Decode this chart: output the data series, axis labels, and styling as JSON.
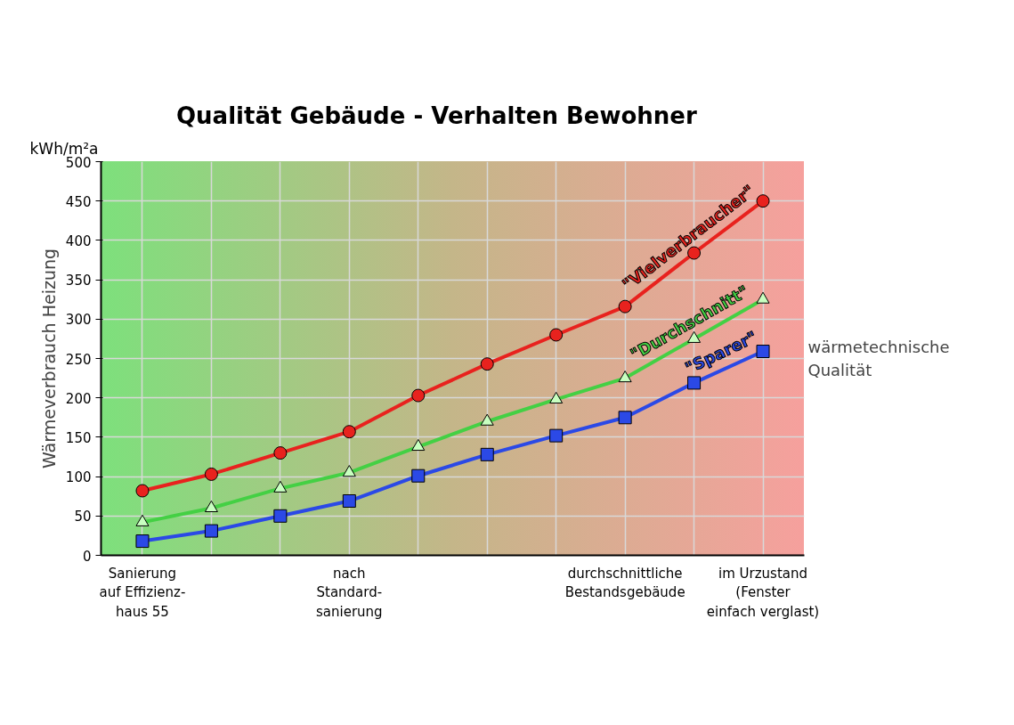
{
  "chart_data": {
    "type": "line",
    "title": "Qualität Gebäude   -   Verhalten Bewohner",
    "ylabel": "Wärmeverbrauch Heizung",
    "xlabel": "wärmetechnische Qualität",
    "annotations": [
      "kWh/m²a"
    ],
    "categories": [
      "Sanierung\nauf Effizienz-\nhaus 55",
      null,
      null,
      "nach\nStandard-\nsanierung",
      null,
      null,
      null,
      "durchschnittliche\nBestandsgebäude",
      null,
      "im Urzustand\n(Fenster\neinfach verglast)"
    ],
    "ylim": [
      0,
      500
    ],
    "yticks": [
      0,
      50,
      100,
      150,
      200,
      250,
      300,
      350,
      400,
      450,
      500
    ],
    "grid": true,
    "line_style": "solid",
    "series": [
      {
        "name": "\"Vielverbraucher\"",
        "color": "#e8221e",
        "marker": "circle",
        "values": [
          82,
          103,
          130,
          157,
          203,
          243,
          280,
          316,
          384,
          450
        ]
      },
      {
        "name": "\"Durchschnitt\"",
        "color": "#44d044",
        "marker": "triangle",
        "values": [
          42,
          60,
          85,
          105,
          138,
          170,
          198,
          225,
          275,
          325
        ]
      },
      {
        "name": "\"Sparer\"",
        "color": "#2b49e6",
        "marker": "square",
        "values": [
          18,
          31,
          50,
          69,
          101,
          128,
          152,
          175,
          219,
          259
        ]
      }
    ]
  }
}
